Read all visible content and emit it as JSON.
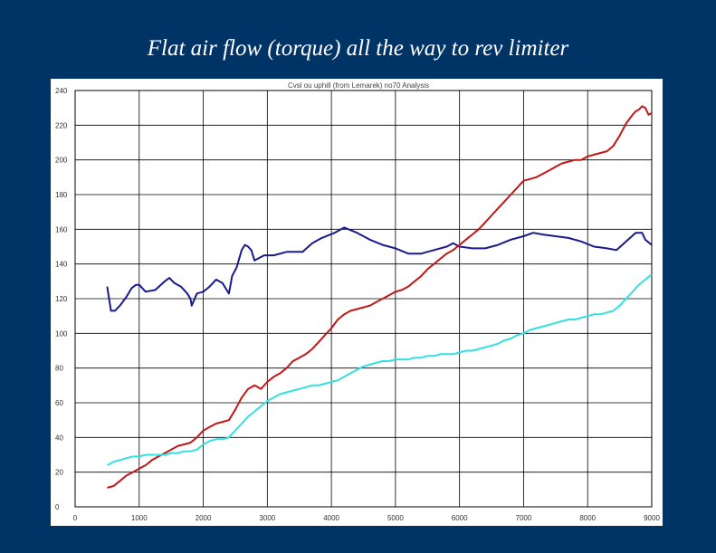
{
  "slide": {
    "title": "Flat air flow (torque) all the way to rev limiter"
  },
  "chart_data": {
    "type": "line",
    "title": "Cvsl ou uphill (from Lemarek) no70 Analysis",
    "xlim": [
      0,
      9000
    ],
    "ylim": [
      0,
      240
    ],
    "x_ticks": [
      0,
      1000,
      2000,
      3000,
      4000,
      5000,
      6000,
      7000,
      8000,
      9000
    ],
    "y_ticks": [
      0,
      20,
      40,
      60,
      80,
      100,
      120,
      140,
      160,
      180,
      200,
      220,
      240
    ],
    "grid": true,
    "legend": "none",
    "series": [
      {
        "color": "#1a1a8c",
        "x": [
          500,
          560,
          620,
          700,
          800,
          880,
          950,
          1000,
          1100,
          1250,
          1400,
          1470,
          1550,
          1650,
          1750,
          1800,
          1820,
          1900,
          2000,
          2100,
          2200,
          2300,
          2350,
          2400,
          2450,
          2520,
          2600,
          2650,
          2700,
          2750,
          2800,
          2850,
          2950,
          3100,
          3300,
          3450,
          3550,
          3700,
          3850,
          4050,
          4200,
          4400,
          4600,
          4800,
          5000,
          5200,
          5400,
          5600,
          5800,
          5900,
          6000,
          6200,
          6400,
          6600,
          6800,
          7000,
          7150,
          7300,
          7500,
          7700,
          7900,
          8100,
          8300,
          8450,
          8600,
          8750,
          8850,
          8900,
          9000
        ],
        "values": [
          127,
          113,
          113,
          116,
          121,
          126,
          128,
          128,
          124,
          125,
          130,
          132,
          129,
          127,
          123,
          120,
          116,
          123,
          124,
          127,
          131,
          129,
          126,
          123,
          133,
          138,
          148,
          151,
          150,
          148,
          142,
          143,
          145,
          145,
          147,
          147,
          147,
          152,
          155,
          158,
          161,
          158,
          154,
          151,
          149,
          146,
          146,
          148,
          150,
          152,
          150,
          149,
          149,
          151,
          154,
          156,
          158,
          157,
          156,
          155,
          153,
          150,
          149,
          148,
          153,
          158,
          158,
          154,
          151
        ]
      },
      {
        "color": "#c01818",
        "x": [
          500,
          600,
          700,
          800,
          900,
          1000,
          1100,
          1200,
          1300,
          1400,
          1500,
          1600,
          1700,
          1800,
          1900,
          2000,
          2100,
          2200,
          2300,
          2400,
          2500,
          2600,
          2700,
          2800,
          2900,
          3000,
          3100,
          3200,
          3300,
          3400,
          3500,
          3600,
          3700,
          3800,
          3900,
          4000,
          4100,
          4200,
          4300,
          4400,
          4500,
          4600,
          4700,
          4800,
          4900,
          5000,
          5100,
          5200,
          5300,
          5400,
          5500,
          5600,
          5700,
          5800,
          5900,
          6000,
          6100,
          6200,
          6300,
          6400,
          6500,
          6600,
          6700,
          6800,
          6900,
          7000,
          7100,
          7200,
          7300,
          7400,
          7500,
          7600,
          7700,
          7800,
          7900,
          8000,
          8100,
          8200,
          8300,
          8400,
          8500,
          8600,
          8700,
          8750,
          8800,
          8850,
          8900,
          8950,
          9000
        ],
        "values": [
          11,
          12,
          15,
          18,
          20,
          22,
          24,
          27,
          29,
          31,
          33,
          35,
          36,
          37,
          40,
          44,
          46,
          48,
          49,
          50,
          56,
          63,
          68,
          70,
          68,
          72,
          75,
          77,
          80,
          84,
          86,
          88,
          91,
          95,
          99,
          103,
          108,
          111,
          113,
          114,
          115,
          116,
          118,
          120,
          122,
          124,
          125,
          127,
          130,
          133,
          137,
          140,
          143,
          146,
          148,
          151,
          154,
          157,
          160,
          164,
          168,
          172,
          176,
          180,
          184,
          188,
          189,
          190,
          192,
          194,
          196,
          198,
          199,
          200,
          200,
          202,
          203,
          204,
          205,
          208,
          214,
          221,
          226,
          228,
          229,
          231,
          230,
          226,
          227
        ]
      },
      {
        "color": "#33e0e0",
        "x": [
          500,
          600,
          700,
          800,
          900,
          1000,
          1100,
          1200,
          1300,
          1400,
          1500,
          1600,
          1700,
          1800,
          1900,
          2000,
          2100,
          2200,
          2300,
          2400,
          2500,
          2600,
          2700,
          2800,
          2900,
          3000,
          3100,
          3200,
          3300,
          3400,
          3500,
          3600,
          3700,
          3800,
          3900,
          4000,
          4100,
          4200,
          4300,
          4400,
          4500,
          4600,
          4700,
          4800,
          4900,
          5000,
          5100,
          5200,
          5300,
          5400,
          5500,
          5600,
          5700,
          5800,
          5900,
          6000,
          6100,
          6200,
          6300,
          6400,
          6500,
          6600,
          6700,
          6800,
          6900,
          7000,
          7100,
          7200,
          7300,
          7400,
          7500,
          7600,
          7700,
          7800,
          7900,
          8000,
          8100,
          8200,
          8300,
          8400,
          8500,
          8600,
          8700,
          8800,
          8900,
          9000
        ],
        "values": [
          24,
          26,
          27,
          28,
          29,
          29,
          30,
          30,
          30,
          30,
          31,
          31,
          32,
          32,
          33,
          36,
          38,
          39,
          39,
          40,
          44,
          48,
          52,
          55,
          58,
          61,
          63,
          65,
          66,
          67,
          68,
          69,
          70,
          70,
          71,
          72,
          73,
          75,
          77,
          79,
          81,
          82,
          83,
          84,
          84,
          85,
          85,
          85,
          86,
          86,
          87,
          87,
          88,
          88,
          88,
          89,
          90,
          90,
          91,
          92,
          93,
          94,
          96,
          97,
          99,
          100,
          102,
          103,
          104,
          105,
          106,
          107,
          108,
          108,
          109,
          110,
          111,
          111,
          112,
          113,
          116,
          120,
          124,
          128,
          131,
          134
        ]
      }
    ]
  }
}
